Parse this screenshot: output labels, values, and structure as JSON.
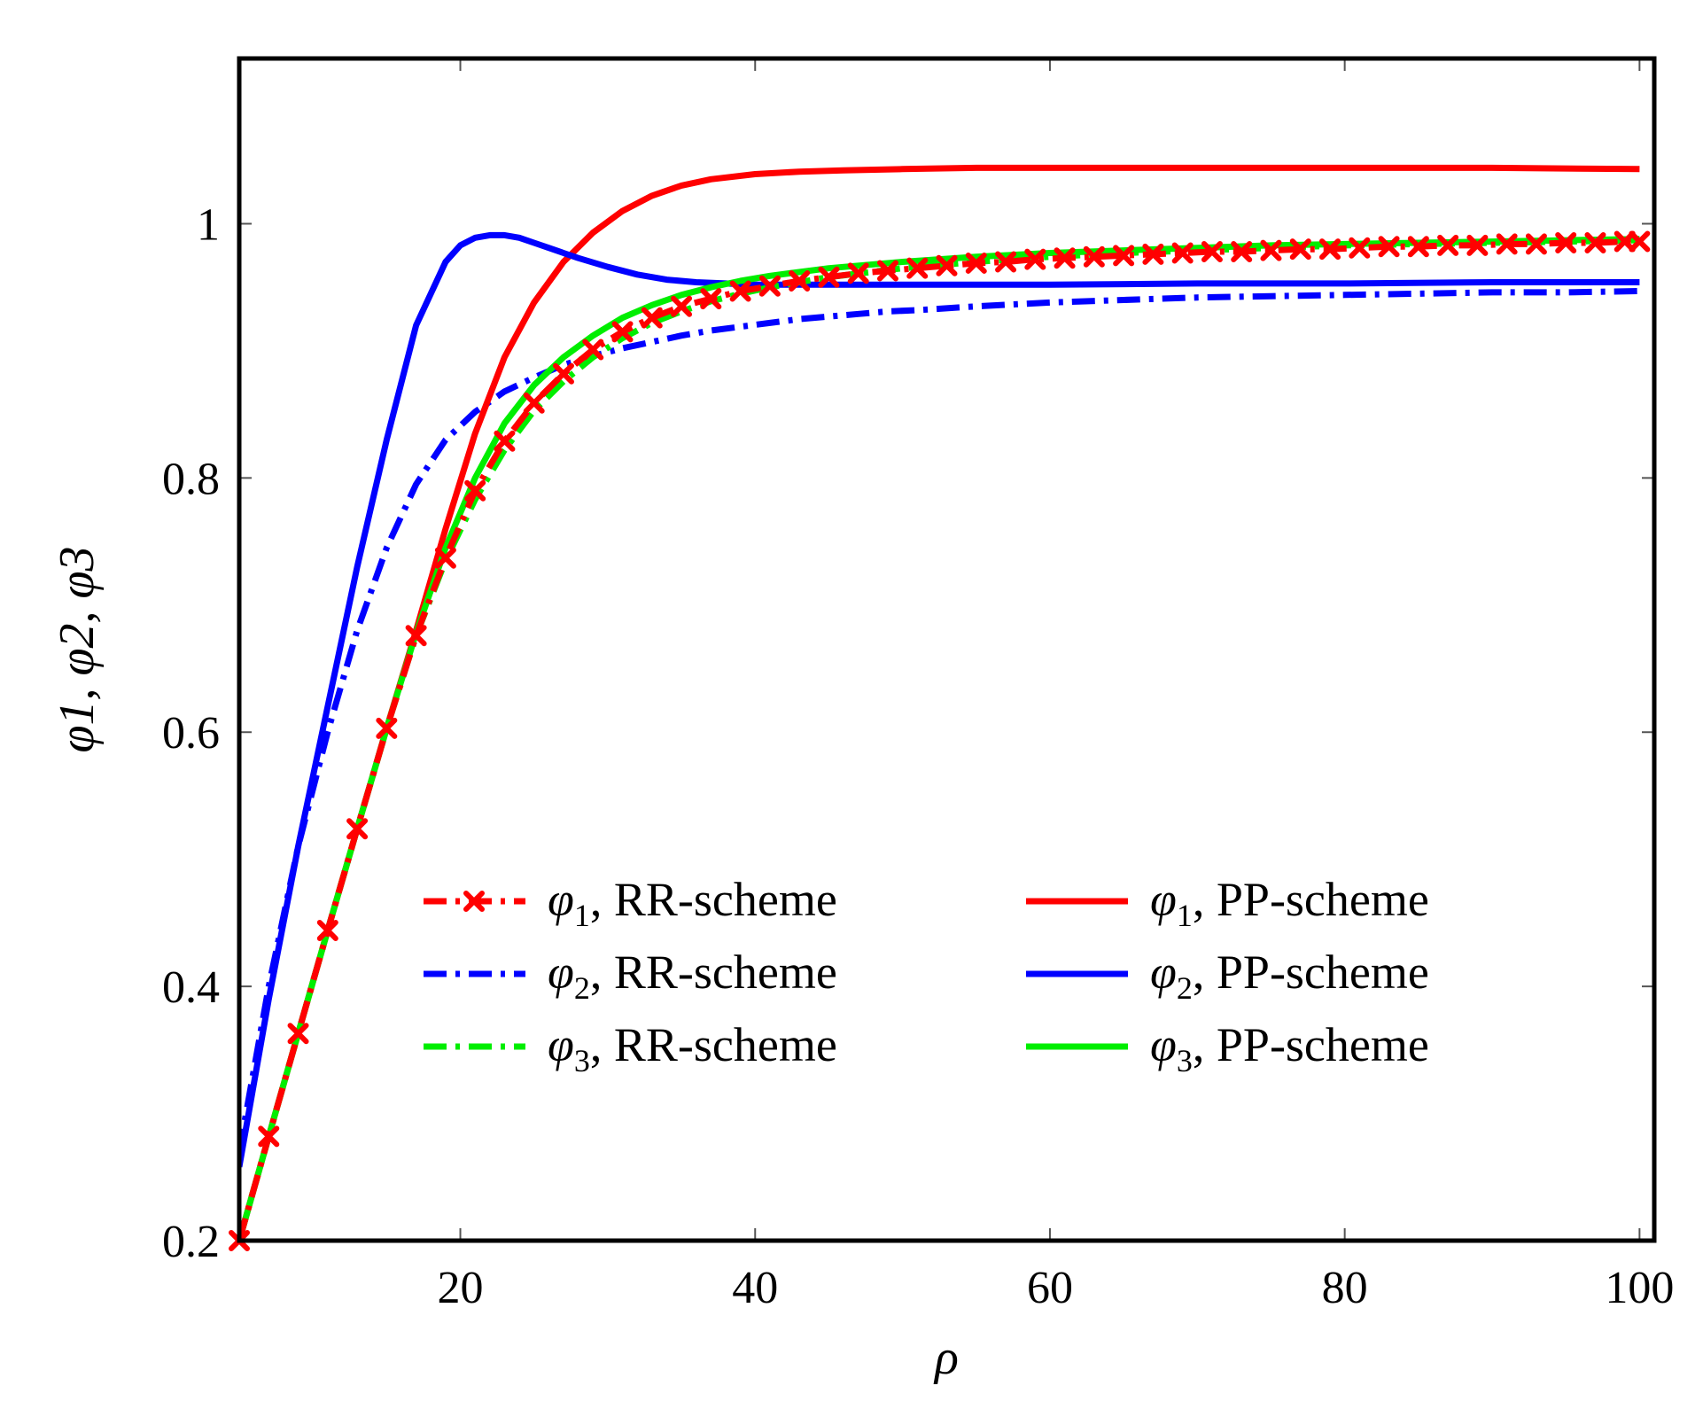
{
  "chart_data": {
    "type": "line",
    "title": "",
    "xlabel": "ρ",
    "ylabel": "φ1, φ2, φ3",
    "xlim": [
      5,
      101
    ],
    "ylim": [
      0.2,
      1.13
    ],
    "xticks": [
      20,
      40,
      60,
      80,
      100
    ],
    "xtick_labels": [
      "20",
      "40",
      "60",
      "80",
      "100"
    ],
    "yticks": [
      0.2,
      0.4,
      0.6,
      0.8,
      1.0
    ],
    "ytick_labels": [
      "0.2",
      "0.4",
      "0.6",
      "0.8",
      "1"
    ],
    "grid": false,
    "legend_position": "lower-right",
    "series": [
      {
        "name": "φ1, RR-scheme",
        "symbol": "φ",
        "subscript": "1",
        "scheme": ", RR-scheme",
        "color": "#ff0000",
        "style": "dashdot",
        "marker": "x",
        "x": [
          5,
          7,
          9,
          11,
          13,
          15,
          17,
          19,
          21,
          23,
          25,
          27,
          29,
          31,
          33,
          35,
          37,
          39,
          41,
          43,
          45,
          47,
          49,
          51,
          53,
          55,
          57,
          59,
          61,
          63,
          65,
          67,
          69,
          71,
          73,
          75,
          77,
          79,
          81,
          83,
          85,
          87,
          89,
          91,
          93,
          95,
          97,
          99,
          100
        ],
        "y": [
          0.2,
          0.282,
          0.363,
          0.444,
          0.524,
          0.603,
          0.676,
          0.737,
          0.79,
          0.829,
          0.859,
          0.882,
          0.901,
          0.915,
          0.926,
          0.935,
          0.941,
          0.947,
          0.951,
          0.955,
          0.958,
          0.961,
          0.963,
          0.965,
          0.967,
          0.969,
          0.97,
          0.972,
          0.973,
          0.974,
          0.975,
          0.976,
          0.977,
          0.978,
          0.978,
          0.979,
          0.98,
          0.98,
          0.981,
          0.982,
          0.982,
          0.983,
          0.983,
          0.984,
          0.984,
          0.985,
          0.985,
          0.986,
          0.986
        ]
      },
      {
        "name": "φ2, RR-scheme",
        "symbol": "φ",
        "subscript": "2",
        "scheme": ", RR-scheme",
        "color": "#0000ff",
        "style": "dashdot",
        "marker": "none",
        "x": [
          5,
          7,
          9,
          11,
          13,
          15,
          17,
          19,
          21,
          23,
          25,
          27,
          29,
          31,
          33,
          35,
          37,
          39,
          41,
          43,
          45,
          47,
          49,
          51,
          55,
          60,
          65,
          70,
          75,
          80,
          85,
          90,
          95,
          100
        ],
        "y": [
          0.27,
          0.4,
          0.51,
          0.6,
          0.68,
          0.745,
          0.795,
          0.83,
          0.852,
          0.868,
          0.879,
          0.889,
          0.896,
          0.902,
          0.907,
          0.912,
          0.916,
          0.919,
          0.922,
          0.925,
          0.927,
          0.929,
          0.931,
          0.932,
          0.935,
          0.938,
          0.94,
          0.942,
          0.943,
          0.944,
          0.945,
          0.946,
          0.946,
          0.947
        ]
      },
      {
        "name": "φ3, RR-scheme",
        "symbol": "φ",
        "subscript": "3",
        "scheme": ", RR-scheme",
        "color": "#00ee00",
        "style": "dashdot",
        "marker": "none",
        "x": [
          5,
          7,
          9,
          11,
          13,
          15,
          17,
          19,
          21,
          23,
          25,
          27,
          29,
          31,
          33,
          35,
          37,
          39,
          41,
          43,
          45,
          50,
          55,
          60,
          65,
          70,
          75,
          80,
          85,
          90,
          95,
          100
        ],
        "y": [
          0.2,
          0.282,
          0.363,
          0.444,
          0.524,
          0.603,
          0.676,
          0.735,
          0.783,
          0.822,
          0.853,
          0.876,
          0.895,
          0.91,
          0.922,
          0.931,
          0.939,
          0.945,
          0.95,
          0.954,
          0.958,
          0.965,
          0.97,
          0.974,
          0.977,
          0.979,
          0.981,
          0.983,
          0.984,
          0.985,
          0.986,
          0.987
        ]
      },
      {
        "name": "φ1, PP-scheme",
        "symbol": "φ",
        "subscript": "1",
        "scheme": ", PP-scheme",
        "color": "#ff0000",
        "style": "solid",
        "marker": "none",
        "x": [
          5,
          7,
          9,
          11,
          13,
          15,
          17,
          19,
          21,
          23,
          25,
          27,
          29,
          31,
          33,
          35,
          37,
          40,
          43,
          46,
          50,
          55,
          60,
          70,
          80,
          90,
          100
        ],
        "y": [
          0.2,
          0.282,
          0.363,
          0.444,
          0.524,
          0.603,
          0.68,
          0.76,
          0.835,
          0.895,
          0.938,
          0.97,
          0.993,
          1.01,
          1.022,
          1.03,
          1.035,
          1.039,
          1.041,
          1.042,
          1.043,
          1.044,
          1.044,
          1.044,
          1.044,
          1.044,
          1.043
        ]
      },
      {
        "name": "φ2, PP-scheme",
        "symbol": "φ",
        "subscript": "2",
        "scheme": ", PP-scheme",
        "color": "#0000ff",
        "style": "solid",
        "marker": "none",
        "x": [
          5,
          7,
          9,
          11,
          13,
          15,
          17,
          19,
          20,
          21,
          22,
          23,
          24,
          25,
          26,
          27,
          28,
          30,
          32,
          34,
          36,
          38,
          40,
          45,
          50,
          60,
          70,
          80,
          90,
          100
        ],
        "y": [
          0.258,
          0.39,
          0.51,
          0.62,
          0.73,
          0.83,
          0.92,
          0.97,
          0.983,
          0.989,
          0.991,
          0.991,
          0.989,
          0.985,
          0.981,
          0.977,
          0.973,
          0.966,
          0.96,
          0.956,
          0.954,
          0.953,
          0.952,
          0.952,
          0.952,
          0.952,
          0.953,
          0.953,
          0.954,
          0.954
        ]
      },
      {
        "name": "φ3, PP-scheme",
        "symbol": "φ",
        "subscript": "3",
        "scheme": ", PP-scheme",
        "color": "#00ee00",
        "style": "solid",
        "marker": "none",
        "x": [
          5,
          7,
          9,
          11,
          13,
          15,
          17,
          19,
          21,
          23,
          25,
          27,
          29,
          31,
          33,
          35,
          37,
          39,
          41,
          43,
          45,
          50,
          55,
          60,
          65,
          70,
          75,
          80,
          85,
          90,
          95,
          100
        ],
        "y": [
          0.2,
          0.282,
          0.363,
          0.444,
          0.524,
          0.603,
          0.678,
          0.745,
          0.8,
          0.843,
          0.873,
          0.895,
          0.912,
          0.926,
          0.936,
          0.944,
          0.95,
          0.955,
          0.959,
          0.962,
          0.965,
          0.97,
          0.974,
          0.977,
          0.979,
          0.981,
          0.983,
          0.984,
          0.985,
          0.986,
          0.987,
          0.988
        ]
      }
    ]
  }
}
